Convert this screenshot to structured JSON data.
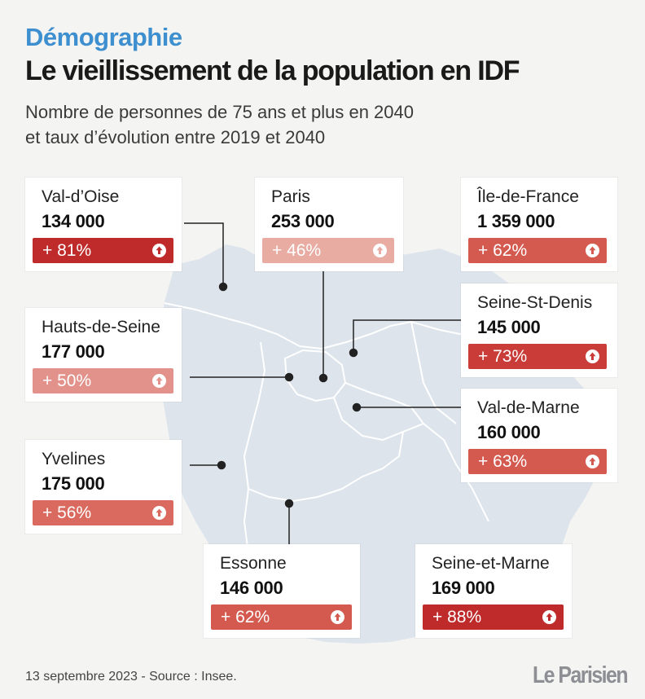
{
  "header": {
    "kicker": "Démographie",
    "title": "Le vieillissement de la population en IDF",
    "subtitle_line1": "Nombre de personnes de 75 ans et plus en 2040",
    "subtitle_line2": "et taux d’évolution entre 2019 et 2040"
  },
  "colors": {
    "kicker": "#3d8fd0",
    "map_fill": "#dde4ec",
    "map_border": "#ffffff",
    "level_dark": "#bf2b2b",
    "level_mid": "#d45a50",
    "level_light": "#e2928a",
    "level_pale": "#e8aca3"
  },
  "departments": [
    {
      "name": "Val-d’Oise",
      "value": "134 000",
      "change": "+ 81%",
      "change_pct": 81,
      "color": "#bf2b2b",
      "icon": "arrow-up-circle-icon"
    },
    {
      "name": "Paris",
      "value": "253 000",
      "change": "+ 46%",
      "change_pct": 46,
      "color": "#e8aca3",
      "icon": "arrow-up-circle-icon"
    },
    {
      "name": "Île-de-France",
      "value": "1 359 000",
      "change": "+ 62%",
      "change_pct": 62,
      "color": "#d45a50",
      "icon": "arrow-up-circle-icon"
    },
    {
      "name": "Seine-St-Denis",
      "value": "145 000",
      "change": "+ 73%",
      "change_pct": 73,
      "color": "#c93c38",
      "icon": "arrow-up-circle-icon"
    },
    {
      "name": "Hauts-de-Seine",
      "value": "177 000",
      "change": "+ 50%",
      "change_pct": 50,
      "color": "#e2928a",
      "icon": "arrow-up-circle-icon"
    },
    {
      "name": "Val-de-Marne",
      "value": "160 000",
      "change": "+ 63%",
      "change_pct": 63,
      "color": "#d45a50",
      "icon": "arrow-up-circle-icon"
    },
    {
      "name": "Yvelines",
      "value": "175 000",
      "change": "+ 56%",
      "change_pct": 56,
      "color": "#da6a5f",
      "icon": "arrow-up-circle-icon"
    },
    {
      "name": "Essonne",
      "value": "146 000",
      "change": "+ 62%",
      "change_pct": 62,
      "color": "#d45a50",
      "icon": "arrow-up-circle-icon"
    },
    {
      "name": "Seine-et-Marne",
      "value": "169 000",
      "change": "+ 88%",
      "change_pct": 88,
      "color": "#bf2b2b",
      "icon": "arrow-up-circle-icon"
    }
  ],
  "footer": {
    "source": "13 septembre 2023 - Source : Insee.",
    "logo": "Le Parisien"
  }
}
